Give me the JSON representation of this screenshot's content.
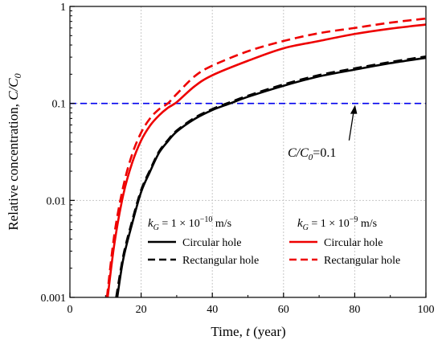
{
  "chart_data": {
    "type": "line",
    "xlabel_prefix": "Time, ",
    "xlabel_var": "t",
    "xlabel_suffix": " (year)",
    "ylabel_prefix": "Relative concentration, ",
    "ylabel_var": "C/C",
    "ylabel_sub": "0",
    "xlim": [
      0,
      100
    ],
    "ylim": [
      0.001,
      1
    ],
    "yscale": "log",
    "grid": true,
    "x_ticks": [
      "0",
      "20",
      "40",
      "60",
      "80",
      "100"
    ],
    "y_ticks": [
      "0.001",
      "0.01",
      "0.1",
      "1"
    ],
    "reference_line": {
      "y": 0.1,
      "color": "#0000ee",
      "style": "dashed"
    },
    "annotation": {
      "var": "C/C",
      "sub": "0",
      "text": "=0.1",
      "arrow_to": [
        80,
        0.1
      ]
    },
    "legend_groups": [
      {
        "label_var": "k",
        "label_sub": "G",
        "label_text": " = 1 × 10",
        "label_exp": "−10",
        "label_unit": " m/s"
      },
      {
        "label_var": "k",
        "label_sub": "G",
        "label_text": " = 1 × 10",
        "label_exp": "−9",
        "label_unit": " m/s"
      }
    ],
    "series": [
      {
        "name": "Circular hole",
        "group": 0,
        "color": "#000000",
        "dashed": false,
        "x": [
          13.3,
          15,
          17.5,
          20,
          22.5,
          25,
          27.5,
          30,
          35,
          40,
          45,
          50,
          60,
          70,
          80,
          90,
          100
        ],
        "y": [
          0.001,
          0.0025,
          0.0058,
          0.0122,
          0.0198,
          0.0308,
          0.0406,
          0.0512,
          0.069,
          0.0855,
          0.1,
          0.117,
          0.152,
          0.19,
          0.223,
          0.26,
          0.295
        ]
      },
      {
        "name": "Rectangular hole",
        "group": 0,
        "color": "#000000",
        "dashed": true,
        "x": [
          13.0,
          15,
          17.5,
          20,
          22.5,
          25,
          27.5,
          30,
          35,
          40,
          45,
          50,
          60,
          70,
          80,
          90,
          100
        ],
        "y": [
          0.001,
          0.0027,
          0.0062,
          0.0128,
          0.0206,
          0.0318,
          0.0418,
          0.0525,
          0.071,
          0.0875,
          0.103,
          0.12,
          0.157,
          0.196,
          0.23,
          0.267,
          0.305
        ]
      },
      {
        "name": "Circular hole",
        "group": 1,
        "color": "#ee0000",
        "dashed": false,
        "x": [
          10.6,
          12.5,
          15,
          17.5,
          20,
          22.5,
          25,
          27.5,
          30,
          35,
          40,
          50,
          60,
          70,
          80,
          90,
          100
        ],
        "y": [
          0.001,
          0.0036,
          0.0115,
          0.0245,
          0.0415,
          0.059,
          0.075,
          0.09,
          0.103,
          0.15,
          0.195,
          0.275,
          0.37,
          0.44,
          0.52,
          0.59,
          0.65
        ]
      },
      {
        "name": "Rectangular hole",
        "group": 1,
        "color": "#ee0000",
        "dashed": true,
        "x": [
          10.4,
          12.5,
          15,
          17.5,
          20,
          22.5,
          25,
          27.5,
          30,
          35,
          40,
          50,
          60,
          70,
          80,
          90,
          100
        ],
        "y": [
          0.001,
          0.0045,
          0.014,
          0.03,
          0.05,
          0.07,
          0.087,
          0.1,
          0.125,
          0.19,
          0.245,
          0.345,
          0.44,
          0.53,
          0.6,
          0.68,
          0.75
        ]
      }
    ]
  }
}
